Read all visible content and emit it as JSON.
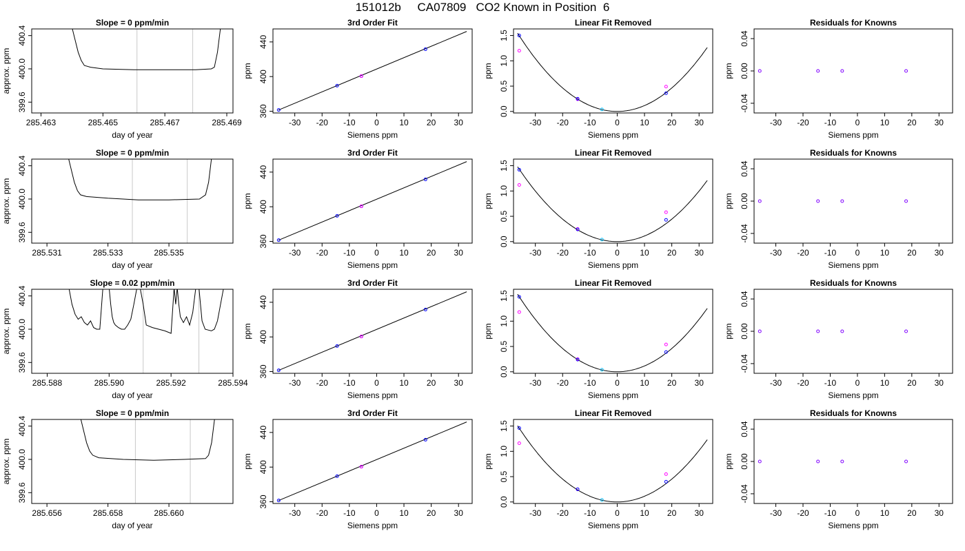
{
  "page_title": "151012b     CA07809   CO2 Known in Position  6",
  "colors": {
    "series_line": "#000000",
    "window_line": "#c8c8c8",
    "fit_points": "#0000ff",
    "raw_points": "#ff00ff",
    "highlight_point": "#00bfff",
    "residual_points": "#7f00ff"
  },
  "axis_labels": {
    "time_x": "day of year",
    "time_y": "approx. ppm",
    "fit_x": "Siemens ppm",
    "fit_y": "ppm",
    "lin_x": "Siemens ppm",
    "lin_y": "ppm",
    "res_x": "Siemens ppm",
    "res_y": "ppm"
  },
  "panel_titles": {
    "fit": "3rd Order Fit",
    "lin": "Linear Fit Removed",
    "res": "Residuals for Knowns"
  },
  "chart_data": [
    {
      "type": "line",
      "row": 1,
      "title": "Slope =  0  ppm/min",
      "xlabel": "day of year",
      "ylabel": "approx. ppm",
      "x_ticks": [
        "285.463",
        "285.465",
        "285.467",
        "285.469"
      ],
      "x_tick_values": [
        285.463,
        285.465,
        285.467,
        285.469
      ],
      "xlim": [
        285.4627,
        285.4692
      ],
      "y_ticks": [
        "399.6",
        "400.0",
        "400.4"
      ],
      "y_tick_values": [
        399.6,
        400.0,
        400.4
      ],
      "ylim": [
        399.47,
        400.48
      ],
      "window": [
        285.4661,
        285.4679
      ],
      "series": [
        {
          "x": [
            285.464,
            285.4641,
            285.4642,
            285.4643,
            285.4644,
            285.4646,
            285.465,
            285.466,
            285.467,
            285.468,
            285.4685,
            285.4686,
            285.4687,
            285.4688
          ],
          "y": [
            400.5,
            400.35,
            400.2,
            400.1,
            400.04,
            400.02,
            400.0,
            399.99,
            399.99,
            399.99,
            400.0,
            400.02,
            400.2,
            400.5
          ]
        }
      ]
    },
    {
      "type": "line",
      "row": 2,
      "title": "Slope =  0  ppm/min",
      "xlabel": "day of year",
      "ylabel": "approx. ppm",
      "x_ticks": [
        "285.531",
        "285.533",
        "285.535"
      ],
      "x_tick_values": [
        285.531,
        285.533,
        285.535
      ],
      "xlim": [
        285.5305,
        285.5371
      ],
      "y_ticks": [
        "399.6",
        "400.0",
        "400.4"
      ],
      "y_tick_values": [
        399.6,
        400.0,
        400.4
      ],
      "ylim": [
        399.47,
        400.48
      ],
      "window": [
        285.5338,
        285.5356
      ],
      "series": [
        {
          "x": [
            285.5317,
            285.5318,
            285.5319,
            285.532,
            285.5321,
            285.5323,
            285.533,
            285.534,
            285.535,
            285.536,
            285.5362,
            285.5363,
            285.5364
          ],
          "y": [
            400.5,
            400.35,
            400.2,
            400.1,
            400.05,
            400.03,
            400.01,
            399.99,
            399.99,
            400.0,
            400.05,
            400.2,
            400.5
          ]
        }
      ]
    },
    {
      "type": "line",
      "row": 3,
      "title": "Slope =  0.02  ppm/min",
      "xlabel": "day of year",
      "ylabel": "approx. ppm",
      "x_ticks": [
        "285.588",
        "285.590",
        "285.592",
        "285.594"
      ],
      "x_tick_values": [
        285.588,
        285.59,
        285.592,
        285.594
      ],
      "xlim": [
        285.5875,
        285.594
      ],
      "y_ticks": [
        "399.6",
        "400.0",
        "400.4"
      ],
      "y_tick_values": [
        399.6,
        400.0,
        400.4
      ],
      "ylim": [
        399.47,
        400.48
      ],
      "window": [
        285.5911,
        285.5929
      ],
      "series": [
        {
          "x": [
            285.5887,
            285.5888,
            285.5889,
            285.589,
            285.5891,
            285.5892,
            285.5893,
            285.5894,
            285.5895,
            285.5896,
            285.5897,
            285.5898,
            285.59,
            285.59005,
            285.5901,
            285.59015,
            285.5902,
            285.5903,
            285.5904,
            285.5905,
            285.5906,
            285.5907,
            285.5908,
            285.5909,
            285.591,
            285.5911,
            285.5912,
            285.5914,
            285.5916,
            285.5918,
            285.592,
            285.5921,
            285.59215,
            285.5922,
            285.59225,
            285.5923,
            285.5924,
            285.5925,
            285.5926,
            285.5927,
            285.5928,
            285.5929,
            285.593,
            285.5931,
            285.5932,
            285.5933,
            285.5934,
            285.5935,
            285.5936,
            285.5937
          ],
          "y": [
            400.5,
            400.3,
            400.18,
            400.12,
            400.15,
            400.08,
            400.05,
            400.1,
            400.02,
            400.0,
            400.0,
            400.5,
            400.5,
            400.3,
            400.15,
            400.08,
            400.05,
            400.02,
            400.0,
            400.0,
            400.05,
            400.12,
            400.3,
            400.5,
            400.5,
            400.3,
            400.05,
            400.02,
            400.0,
            399.98,
            399.95,
            400.5,
            400.3,
            400.5,
            400.3,
            400.15,
            400.08,
            400.15,
            400.05,
            400.2,
            400.5,
            400.5,
            400.1,
            400.0,
            399.99,
            399.98,
            400.0,
            400.1,
            400.3,
            400.5
          ]
        }
      ]
    },
    {
      "type": "line",
      "row": 4,
      "title": "Slope =  0  ppm/min",
      "xlabel": "day of year",
      "ylabel": "approx. ppm",
      "x_ticks": [
        "285.656",
        "285.658",
        "285.660"
      ],
      "x_tick_values": [
        285.656,
        285.658,
        285.66
      ],
      "xlim": [
        285.6555,
        285.6621
      ],
      "y_ticks": [
        "399.6",
        "400.0",
        "400.4"
      ],
      "y_tick_values": [
        399.6,
        400.0,
        400.4
      ],
      "ylim": [
        399.47,
        400.48
      ],
      "window": [
        285.6589,
        285.6607
      ],
      "series": [
        {
          "x": [
            285.6571,
            285.6572,
            285.6573,
            285.6574,
            285.6575,
            285.6577,
            285.6585,
            285.6595,
            285.6605,
            285.6612,
            285.6613,
            285.6614,
            285.6615
          ],
          "y": [
            400.5,
            400.35,
            400.2,
            400.1,
            400.05,
            400.02,
            400.0,
            399.99,
            400.0,
            400.01,
            400.05,
            400.2,
            400.5
          ]
        }
      ]
    },
    {
      "type": "line",
      "row": 1,
      "title": "3rd Order Fit",
      "xlabel": "Siemens ppm",
      "ylabel": "ppm",
      "x_ticks": [
        "-30",
        "-20",
        "-10",
        "0",
        "10",
        "20",
        "30"
      ],
      "x_tick_values": [
        -30,
        -20,
        -10,
        0,
        10,
        20,
        30
      ],
      "xlim": [
        -38,
        35
      ],
      "y_ticks": [
        "360",
        "400",
        "440"
      ],
      "y_tick_values": [
        360,
        400,
        440
      ],
      "ylim": [
        358,
        455
      ],
      "curve": {
        "x": [
          -36,
          33
        ],
        "y": [
          361.3,
          452.1
        ]
      },
      "points": {
        "x": [
          -35.9,
          -14.5,
          -5.6,
          17.9
        ],
        "y": [
          361.5,
          389.5,
          400.5,
          431.6
        ],
        "raw_x": [
          -5.6
        ],
        "raw_y": [
          400.5
        ]
      }
    },
    {
      "type": "line",
      "row": 2,
      "title": "3rd Order Fit",
      "xlabel": "Siemens ppm",
      "ylabel": "ppm",
      "x_ticks": [
        "-30",
        "-20",
        "-10",
        "0",
        "10",
        "20",
        "30"
      ],
      "x_tick_values": [
        -30,
        -20,
        -10,
        0,
        10,
        20,
        30
      ],
      "xlim": [
        -38,
        35
      ],
      "y_ticks": [
        "360",
        "400",
        "440"
      ],
      "y_tick_values": [
        360,
        400,
        440
      ],
      "ylim": [
        358,
        455
      ],
      "curve": {
        "x": [
          -36,
          33
        ],
        "y": [
          361.3,
          452.1
        ]
      },
      "points": {
        "x": [
          -35.9,
          -14.5,
          -5.6,
          17.9
        ],
        "y": [
          361.5,
          389.5,
          400.5,
          431.6
        ],
        "raw_x": [
          -5.6
        ],
        "raw_y": [
          400.5
        ]
      }
    },
    {
      "type": "line",
      "row": 3,
      "title": "3rd Order Fit",
      "xlabel": "Siemens ppm",
      "ylabel": "ppm",
      "x_ticks": [
        "-30",
        "-20",
        "-10",
        "0",
        "10",
        "20",
        "30"
      ],
      "x_tick_values": [
        -30,
        -20,
        -10,
        0,
        10,
        20,
        30
      ],
      "xlim": [
        -38,
        35
      ],
      "y_ticks": [
        "360",
        "400",
        "440"
      ],
      "y_tick_values": [
        360,
        400,
        440
      ],
      "ylim": [
        358,
        455
      ],
      "curve": {
        "x": [
          -36,
          33
        ],
        "y": [
          361.3,
          452.1
        ]
      },
      "points": {
        "x": [
          -35.9,
          -14.5,
          -5.6,
          17.9
        ],
        "y": [
          361.5,
          389.5,
          400.5,
          431.6
        ],
        "raw_x": [
          -5.6
        ],
        "raw_y": [
          400.5
        ]
      }
    },
    {
      "type": "line",
      "row": 4,
      "title": "3rd Order Fit",
      "xlabel": "Siemens ppm",
      "ylabel": "ppm",
      "x_ticks": [
        "-30",
        "-20",
        "-10",
        "0",
        "10",
        "20",
        "30"
      ],
      "x_tick_values": [
        -30,
        -20,
        -10,
        0,
        10,
        20,
        30
      ],
      "xlim": [
        -38,
        35
      ],
      "y_ticks": [
        "360",
        "400",
        "440"
      ],
      "y_tick_values": [
        360,
        400,
        440
      ],
      "ylim": [
        358,
        455
      ],
      "curve": {
        "x": [
          -36,
          33
        ],
        "y": [
          361.3,
          452.1
        ]
      },
      "points": {
        "x": [
          -35.9,
          -14.5,
          -5.6,
          17.9
        ],
        "y": [
          361.5,
          389.5,
          400.5,
          431.6
        ],
        "raw_x": [
          -5.6
        ],
        "raw_y": [
          400.5
        ]
      }
    },
    {
      "type": "line",
      "row": 1,
      "title": "Linear Fit Removed",
      "xlabel": "Siemens ppm",
      "ylabel": "ppm",
      "x_ticks": [
        "-30",
        "-20",
        "-10",
        "0",
        "10",
        "20",
        "30"
      ],
      "x_tick_values": [
        -30,
        -20,
        -10,
        0,
        10,
        20,
        30
      ],
      "xlim": [
        -38,
        35
      ],
      "y_ticks": [
        "0.0",
        "0.5",
        "1.0",
        "1.5"
      ],
      "y_tick_values": [
        0.0,
        0.5,
        1.0,
        1.5
      ],
      "ylim": [
        -0.03,
        1.63
      ],
      "quad_coef": 0.00116,
      "points": {
        "x": [
          -35.9,
          -14.5,
          -5.6,
          17.9
        ],
        "y": [
          1.5,
          0.25,
          0.04,
          0.36
        ]
      },
      "raw": {
        "x": [
          -35.9,
          -14.5,
          17.9
        ],
        "y": [
          1.2,
          0.24,
          0.49
        ]
      }
    },
    {
      "type": "line",
      "row": 2,
      "title": "Linear Fit Removed",
      "xlabel": "Siemens ppm",
      "ylabel": "ppm",
      "x_ticks": [
        "-30",
        "-20",
        "-10",
        "0",
        "10",
        "20",
        "30"
      ],
      "x_tick_values": [
        -30,
        -20,
        -10,
        0,
        10,
        20,
        30
      ],
      "xlim": [
        -38,
        35
      ],
      "y_ticks": [
        "0.0",
        "0.5",
        "1.0",
        "1.5"
      ],
      "y_tick_values": [
        0.0,
        0.5,
        1.0,
        1.5
      ],
      "ylim": [
        -0.03,
        1.63
      ],
      "quad_coef": 0.00111,
      "points": {
        "x": [
          -35.9,
          -14.5,
          -5.6,
          17.9
        ],
        "y": [
          1.42,
          0.24,
          0.04,
          0.43
        ]
      },
      "raw": {
        "x": [
          -35.9,
          -14.5,
          17.9
        ],
        "y": [
          1.12,
          0.25,
          0.58
        ]
      }
    },
    {
      "type": "line",
      "row": 3,
      "title": "Linear Fit Removed",
      "xlabel": "Siemens ppm",
      "ylabel": "ppm",
      "x_ticks": [
        "-30",
        "-20",
        "-10",
        "0",
        "10",
        "20",
        "30"
      ],
      "x_tick_values": [
        -30,
        -20,
        -10,
        0,
        10,
        20,
        30
      ],
      "xlim": [
        -38,
        35
      ],
      "y_ticks": [
        "0.0",
        "0.5",
        "1.0",
        "1.5"
      ],
      "y_tick_values": [
        0.0,
        0.5,
        1.0,
        1.5
      ],
      "ylim": [
        -0.03,
        1.63
      ],
      "quad_coef": 0.00115,
      "points": {
        "x": [
          -35.9,
          -14.5,
          -5.6,
          17.9
        ],
        "y": [
          1.48,
          0.24,
          0.04,
          0.39
        ]
      },
      "raw": {
        "x": [
          -35.9,
          -14.5,
          17.9
        ],
        "y": [
          1.18,
          0.25,
          0.54
        ]
      }
    },
    {
      "type": "line",
      "row": 4,
      "title": "Linear Fit Removed",
      "xlabel": "Siemens ppm",
      "ylabel": "ppm",
      "x_ticks": [
        "-30",
        "-20",
        "-10",
        "0",
        "10",
        "20",
        "30"
      ],
      "x_tick_values": [
        -30,
        -20,
        -10,
        0,
        10,
        20,
        30
      ],
      "xlim": [
        -38,
        35
      ],
      "y_ticks": [
        "0.0",
        "0.5",
        "1.0",
        "1.5"
      ],
      "y_tick_values": [
        0.0,
        0.5,
        1.0,
        1.5
      ],
      "ylim": [
        -0.03,
        1.63
      ],
      "quad_coef": 0.00113,
      "points": {
        "x": [
          -35.9,
          -14.5,
          -5.6,
          17.9
        ],
        "y": [
          1.46,
          0.25,
          0.04,
          0.4
        ]
      },
      "raw": {
        "x": [
          -35.9,
          -14.5,
          17.9
        ],
        "y": [
          1.16,
          0.25,
          0.55
        ]
      }
    },
    {
      "type": "scatter",
      "row": 1,
      "title": "Residuals for Knowns",
      "xlabel": "Siemens ppm",
      "ylabel": "ppm",
      "x_ticks": [
        "-30",
        "-20",
        "-10",
        "0",
        "10",
        "20",
        "30"
      ],
      "x_tick_values": [
        -30,
        -20,
        -10,
        0,
        10,
        20,
        30
      ],
      "xlim": [
        -38,
        35
      ],
      "y_ticks": [
        "-0.04",
        "0.00",
        "0.04"
      ],
      "y_tick_values": [
        -0.04,
        0.0,
        0.04
      ],
      "ylim": [
        -0.052,
        0.052
      ],
      "points": {
        "x": [
          -35.9,
          -14.5,
          -5.6,
          17.9
        ],
        "y": [
          0,
          0,
          0,
          0
        ]
      }
    },
    {
      "type": "scatter",
      "row": 2,
      "title": "Residuals for Knowns",
      "xlabel": "Siemens ppm",
      "ylabel": "ppm",
      "x_ticks": [
        "-30",
        "-20",
        "-10",
        "0",
        "10",
        "20",
        "30"
      ],
      "x_tick_values": [
        -30,
        -20,
        -10,
        0,
        10,
        20,
        30
      ],
      "xlim": [
        -38,
        35
      ],
      "y_ticks": [
        "-0.04",
        "0.00",
        "0.04"
      ],
      "y_tick_values": [
        -0.04,
        0.0,
        0.04
      ],
      "ylim": [
        -0.052,
        0.052
      ],
      "points": {
        "x": [
          -35.9,
          -14.5,
          -5.6,
          17.9
        ],
        "y": [
          0,
          0,
          0,
          0
        ]
      }
    },
    {
      "type": "scatter",
      "row": 3,
      "title": "Residuals for Knowns",
      "xlabel": "Siemens ppm",
      "ylabel": "ppm",
      "x_ticks": [
        "-30",
        "-20",
        "-10",
        "0",
        "10",
        "20",
        "30"
      ],
      "x_tick_values": [
        -30,
        -20,
        -10,
        0,
        10,
        20,
        30
      ],
      "xlim": [
        -38,
        35
      ],
      "y_ticks": [
        "-0.04",
        "0.00",
        "0.04"
      ],
      "y_tick_values": [
        -0.04,
        0.0,
        0.04
      ],
      "ylim": [
        -0.052,
        0.052
      ],
      "points": {
        "x": [
          -35.9,
          -14.5,
          -5.6,
          17.9
        ],
        "y": [
          0,
          0,
          0,
          0
        ]
      }
    },
    {
      "type": "scatter",
      "row": 4,
      "title": "Residuals for Knowns",
      "xlabel": "Siemens ppm",
      "ylabel": "ppm",
      "x_ticks": [
        "-30",
        "-20",
        "-10",
        "0",
        "10",
        "20",
        "30"
      ],
      "x_tick_values": [
        -30,
        -20,
        -10,
        0,
        10,
        20,
        30
      ],
      "xlim": [
        -38,
        35
      ],
      "y_ticks": [
        "-0.04",
        "0.00",
        "0.04"
      ],
      "y_tick_values": [
        -0.04,
        0.0,
        0.04
      ],
      "ylim": [
        -0.052,
        0.052
      ],
      "points": {
        "x": [
          -35.9,
          -14.5,
          -5.6,
          17.9
        ],
        "y": [
          0,
          0,
          0,
          0
        ]
      }
    }
  ]
}
